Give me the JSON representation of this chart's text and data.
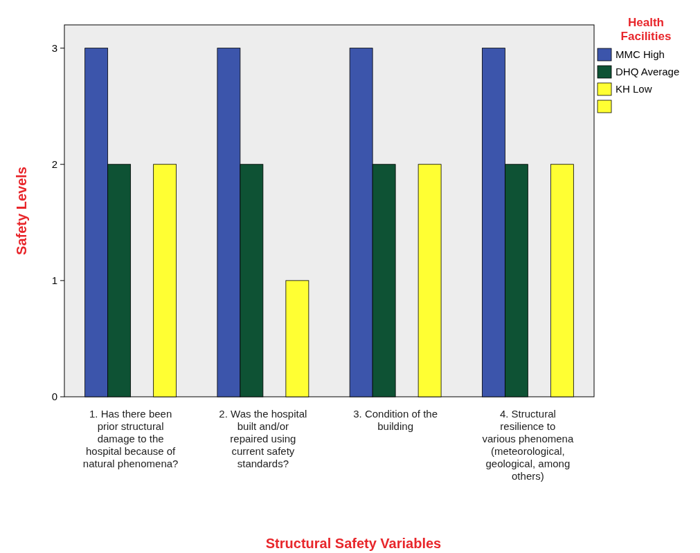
{
  "chart_data": {
    "type": "bar",
    "xlabel": "Structural Safety Variables",
    "ylabel": "Safety Levels",
    "legend_title": "Health Facilities",
    "categories": [
      "1. Has there been prior structural damage to the hospital because of natural phenomena?",
      "2. Was the hospital built and/or repaired using current safety standards?",
      "3. Condition of the building",
      "4.  Structural resilience to various phenomena (meteorological, geological, among others)"
    ],
    "series": [
      {
        "name": "MMC High",
        "color": "#3c55ab",
        "values": [
          3,
          3,
          3,
          3
        ]
      },
      {
        "name": "DHQ Average",
        "color": "#0e5234",
        "values": [
          2,
          2,
          2,
          2
        ]
      },
      {
        "name": "KH Low",
        "color": "#ffff33",
        "values": [
          null,
          null,
          null,
          null
        ]
      },
      {
        "color": "#ffff33",
        "values": [
          2,
          1,
          2,
          2
        ]
      }
    ],
    "ylim": [
      0,
      3.2
    ],
    "yticks": [
      0,
      1,
      2,
      3
    ],
    "grid": false,
    "legend": "top right"
  }
}
